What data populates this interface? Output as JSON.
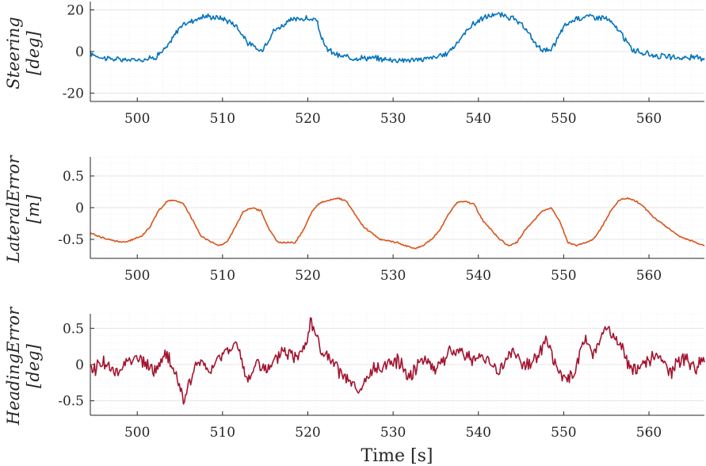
{
  "chart_data": [
    {
      "type": "line",
      "ylabel_line1": "Steering",
      "ylabel_line2": "[deg]",
      "xlim": [
        494.5,
        566.5
      ],
      "ylim": [
        -24,
        24
      ],
      "xticks": [
        500,
        510,
        520,
        530,
        540,
        550,
        560
      ],
      "yticks": [
        -20,
        0,
        20
      ],
      "ytick_labels": [
        "-20",
        "0",
        "20"
      ],
      "xtick_labels": [
        "500",
        "510",
        "520",
        "530",
        "540",
        "550",
        "560"
      ],
      "color": "#0072BD",
      "series": [
        {
          "name": "Steering",
          "x": [
            494.5,
            496,
            498,
            500,
            502,
            503.5,
            505,
            506.5,
            508,
            510,
            511.5,
            513,
            514.5,
            516,
            518,
            519.5,
            521,
            522,
            523.5,
            525,
            527,
            530,
            533,
            536,
            537.5,
            539,
            540.5,
            542,
            544,
            545.5,
            547,
            548.5,
            550,
            551.5,
            553,
            555,
            556.5,
            558,
            559.5,
            561,
            563,
            566.5
          ],
          "y": [
            -1,
            -3,
            -4,
            -4,
            -3,
            2,
            12,
            15,
            17,
            16,
            13,
            4,
            0,
            10,
            15,
            16,
            15,
            2,
            -2,
            -3,
            -3,
            -4,
            -4,
            -2,
            4,
            12,
            16,
            18,
            16,
            11,
            2,
            0,
            12,
            16,
            17,
            16,
            10,
            1,
            -1,
            -2,
            -3,
            -3
          ]
        }
      ]
    },
    {
      "type": "line",
      "ylabel_line1": "LateralError",
      "ylabel_line2": "[m]",
      "xlim": [
        494.5,
        566.5
      ],
      "ylim": [
        -0.8,
        0.8
      ],
      "xticks": [
        500,
        510,
        520,
        530,
        540,
        550,
        560
      ],
      "yticks": [
        -0.5,
        0,
        0.5
      ],
      "ytick_labels": [
        "-0.5",
        "0",
        "0.5"
      ],
      "xtick_labels": [
        "500",
        "510",
        "520",
        "530",
        "540",
        "550",
        "560"
      ],
      "color": "#D95319",
      "series": [
        {
          "name": "Lateral Error",
          "x": [
            494.5,
            496.5,
            498.5,
            500.5,
            501.5,
            502.5,
            503.5,
            504.5,
            505.5,
            506.5,
            507.5,
            509.5,
            510.5,
            511.5,
            512.5,
            513.5,
            514.5,
            515.5,
            516.5,
            518.5,
            519.5,
            520.5,
            521.5,
            522.5,
            523.5,
            524.5,
            525.5,
            526.5,
            528.5,
            530.5,
            532.5,
            533.5,
            534.5,
            535.5,
            536.5,
            537.5,
            538.5,
            539.5,
            540.5,
            542.5,
            543.5,
            544.5,
            545.5,
            546.5,
            547.5,
            548.5,
            549.5,
            550.5,
            551.5,
            553.5,
            554.5,
            555.5,
            556.5,
            557.5,
            558.5,
            559.5,
            560.5,
            562.5,
            563.5,
            564.5,
            565.5,
            566.5
          ],
          "y": [
            -0.4,
            -0.5,
            -0.55,
            -0.45,
            -0.3,
            -0.05,
            0.1,
            0.12,
            0.05,
            -0.2,
            -0.45,
            -0.6,
            -0.55,
            -0.3,
            -0.05,
            0,
            -0.05,
            -0.35,
            -0.55,
            -0.55,
            -0.35,
            -0.05,
            0.08,
            0.12,
            0.15,
            0.1,
            -0.1,
            -0.3,
            -0.5,
            -0.55,
            -0.65,
            -0.6,
            -0.5,
            -0.35,
            -0.1,
            0.08,
            0.1,
            0.05,
            -0.2,
            -0.5,
            -0.6,
            -0.55,
            -0.35,
            -0.2,
            -0.05,
            0,
            -0.2,
            -0.55,
            -0.6,
            -0.5,
            -0.3,
            -0.05,
            0.12,
            0.15,
            0.1,
            0,
            -0.15,
            -0.35,
            -0.45,
            -0.5,
            -0.55,
            -0.6
          ]
        }
      ]
    },
    {
      "type": "line",
      "ylabel_line1": "HeadingError",
      "ylabel_line2": "[deg]",
      "xlabel": "Time [s]",
      "xlim": [
        494.5,
        566.5
      ],
      "ylim": [
        -0.7,
        0.7
      ],
      "xticks": [
        500,
        510,
        520,
        530,
        540,
        550,
        560
      ],
      "yticks": [
        -0.5,
        0,
        0.5
      ],
      "ytick_labels": [
        "-0.5",
        "0",
        "0.5"
      ],
      "xtick_labels": [
        "500",
        "510",
        "520",
        "530",
        "540",
        "550",
        "560"
      ],
      "color": "#A2142F",
      "series": [
        {
          "name": "Heading Error",
          "x": [
            494.5,
            496,
            497.5,
            499,
            500.5,
            502,
            503.5,
            505,
            505.5,
            507,
            508.5,
            510,
            511.5,
            513,
            514,
            515.5,
            517,
            518.5,
            520,
            520.3,
            521.5,
            523,
            524.5,
            526,
            527.5,
            529,
            530.5,
            532,
            533.5,
            535,
            536.5,
            538,
            539.5,
            541,
            542.5,
            544,
            545.5,
            547,
            548,
            549.5,
            551,
            552.5,
            553.5,
            555,
            556.5,
            558,
            559.5,
            561,
            562.5,
            564,
            565.5,
            566.5
          ],
          "y": [
            -0.1,
            0.05,
            -0.15,
            0.1,
            0.05,
            -0.1,
            0.15,
            -0.3,
            -0.5,
            0.05,
            -0.1,
            0.15,
            0.3,
            -0.25,
            0.05,
            -0.1,
            0.2,
            0.1,
            0.35,
            0.65,
            0.2,
            0,
            -0.2,
            -0.4,
            -0.1,
            0,
            0.05,
            -0.15,
            0.1,
            -0.05,
            0.15,
            0.2,
            0.05,
            0.1,
            -0.1,
            0.2,
            -0.05,
            0.15,
            0.35,
            -0.15,
            -0.2,
            0.35,
            0.15,
            0.5,
            0.3,
            -0.1,
            0.05,
            0.1,
            -0.1,
            0.1,
            -0.05,
            0.1
          ]
        }
      ]
    }
  ]
}
